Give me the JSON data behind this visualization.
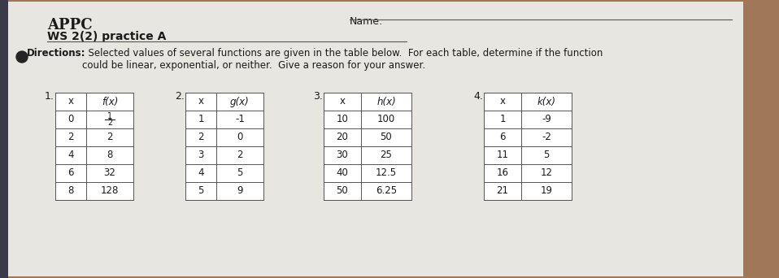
{
  "title_left": "APPC",
  "subtitle_left": "WS 2(2) practice A",
  "name_label": "Name:",
  "directions_bold": "Directions:",
  "directions_rest": "  Selected values of several functions are given in the table below.  For each table, determine if the function\ncould be linear, exponential, or neither.  Give a reason for your answer.",
  "table1": {
    "number": "1.",
    "headers": [
      "x",
      "f(x)"
    ],
    "rows": [
      [
        "0",
        "FRAC_1_2"
      ],
      [
        "2",
        "2"
      ],
      [
        "4",
        "8"
      ],
      [
        "6",
        "32"
      ],
      [
        "8",
        "128"
      ]
    ]
  },
  "table2": {
    "number": "2.",
    "headers": [
      "x",
      "g(x)"
    ],
    "rows": [
      [
        "1",
        "-1"
      ],
      [
        "2",
        "0"
      ],
      [
        "3",
        "2"
      ],
      [
        "4",
        "5"
      ],
      [
        "5",
        "9"
      ]
    ]
  },
  "table3": {
    "number": "3.",
    "headers": [
      "x",
      "h(x)"
    ],
    "rows": [
      [
        "10",
        "100"
      ],
      [
        "20",
        "50"
      ],
      [
        "30",
        "25"
      ],
      [
        "40",
        "12.5"
      ],
      [
        "50",
        "6.25"
      ]
    ]
  },
  "table4": {
    "number": "4.",
    "headers": [
      "x",
      "k(x)"
    ],
    "rows": [
      [
        "1",
        "-9"
      ],
      [
        "6",
        "-2"
      ],
      [
        "11",
        "5"
      ],
      [
        "16",
        "12"
      ],
      [
        "21",
        "19"
      ]
    ]
  },
  "bg_color": "#a07858",
  "paper_color": "#e8e6e0",
  "text_color": "#1a1a1a",
  "line_color": "#555555"
}
